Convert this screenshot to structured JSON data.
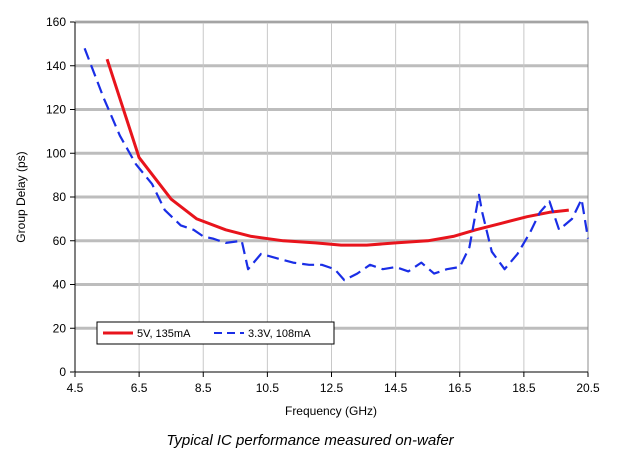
{
  "caption": "Typical IC performance measured on-wafer",
  "chart_data": {
    "type": "line",
    "title": "",
    "xlabel": "Frequency (GHz)",
    "ylabel": "Group Delay (ps)",
    "xlim": [
      4.5,
      20.5
    ],
    "ylim": [
      0,
      160
    ],
    "x_ticks": [
      4.5,
      6.5,
      8.5,
      10.5,
      12.5,
      14.5,
      16.5,
      18.5,
      20.5
    ],
    "x_tick_labels": [
      "4.5",
      "6.5",
      "8.5",
      "10.5",
      "12.5",
      "14.5",
      "16.5",
      "18.5",
      "20.5"
    ],
    "y_ticks": [
      0,
      20,
      40,
      60,
      80,
      100,
      120,
      140,
      160
    ],
    "y_tick_labels": [
      "0",
      "20",
      "40",
      "60",
      "80",
      "100",
      "120",
      "140",
      "160"
    ],
    "grid": "horizontal and vertical",
    "legend_position": "bottom-left",
    "series": [
      {
        "name": "5V, 135mA",
        "color": "#e8141c",
        "style": "solid",
        "x": [
          5.5,
          6.5,
          7.5,
          8.3,
          9.2,
          10.0,
          11.0,
          12.0,
          12.8,
          13.6,
          14.5,
          15.5,
          16.3,
          17.0,
          17.8,
          18.6,
          19.3,
          19.9
        ],
        "y": [
          143,
          98,
          79,
          70,
          65,
          62,
          60,
          59,
          58,
          58,
          59,
          60,
          62,
          65,
          68,
          71,
          73,
          74
        ]
      },
      {
        "name": "3.3V, 108mA",
        "color": "#1a2ee6",
        "style": "dashed",
        "x": [
          4.8,
          5.4,
          5.9,
          6.4,
          6.9,
          7.3,
          7.8,
          8.2,
          8.5,
          8.8,
          9.2,
          9.7,
          9.9,
          10.3,
          10.8,
          11.3,
          11.8,
          12.2,
          12.6,
          12.9,
          13.3,
          13.7,
          14.1,
          14.5,
          14.9,
          15.3,
          15.7,
          16.1,
          16.5,
          16.8,
          17.1,
          17.2,
          17.5,
          17.9,
          18.3,
          18.7,
          19.0,
          19.3,
          19.6,
          20.0,
          20.3,
          20.5
        ],
        "y": [
          148,
          125,
          108,
          95,
          86,
          74,
          67,
          65,
          62,
          61,
          59,
          60,
          47,
          54,
          52,
          50,
          49,
          49,
          47,
          42,
          45,
          49,
          47,
          48,
          46,
          50,
          45,
          47,
          48,
          57,
          81,
          73,
          55,
          47,
          54,
          64,
          73,
          78,
          65,
          70,
          79,
          61
        ]
      }
    ]
  }
}
